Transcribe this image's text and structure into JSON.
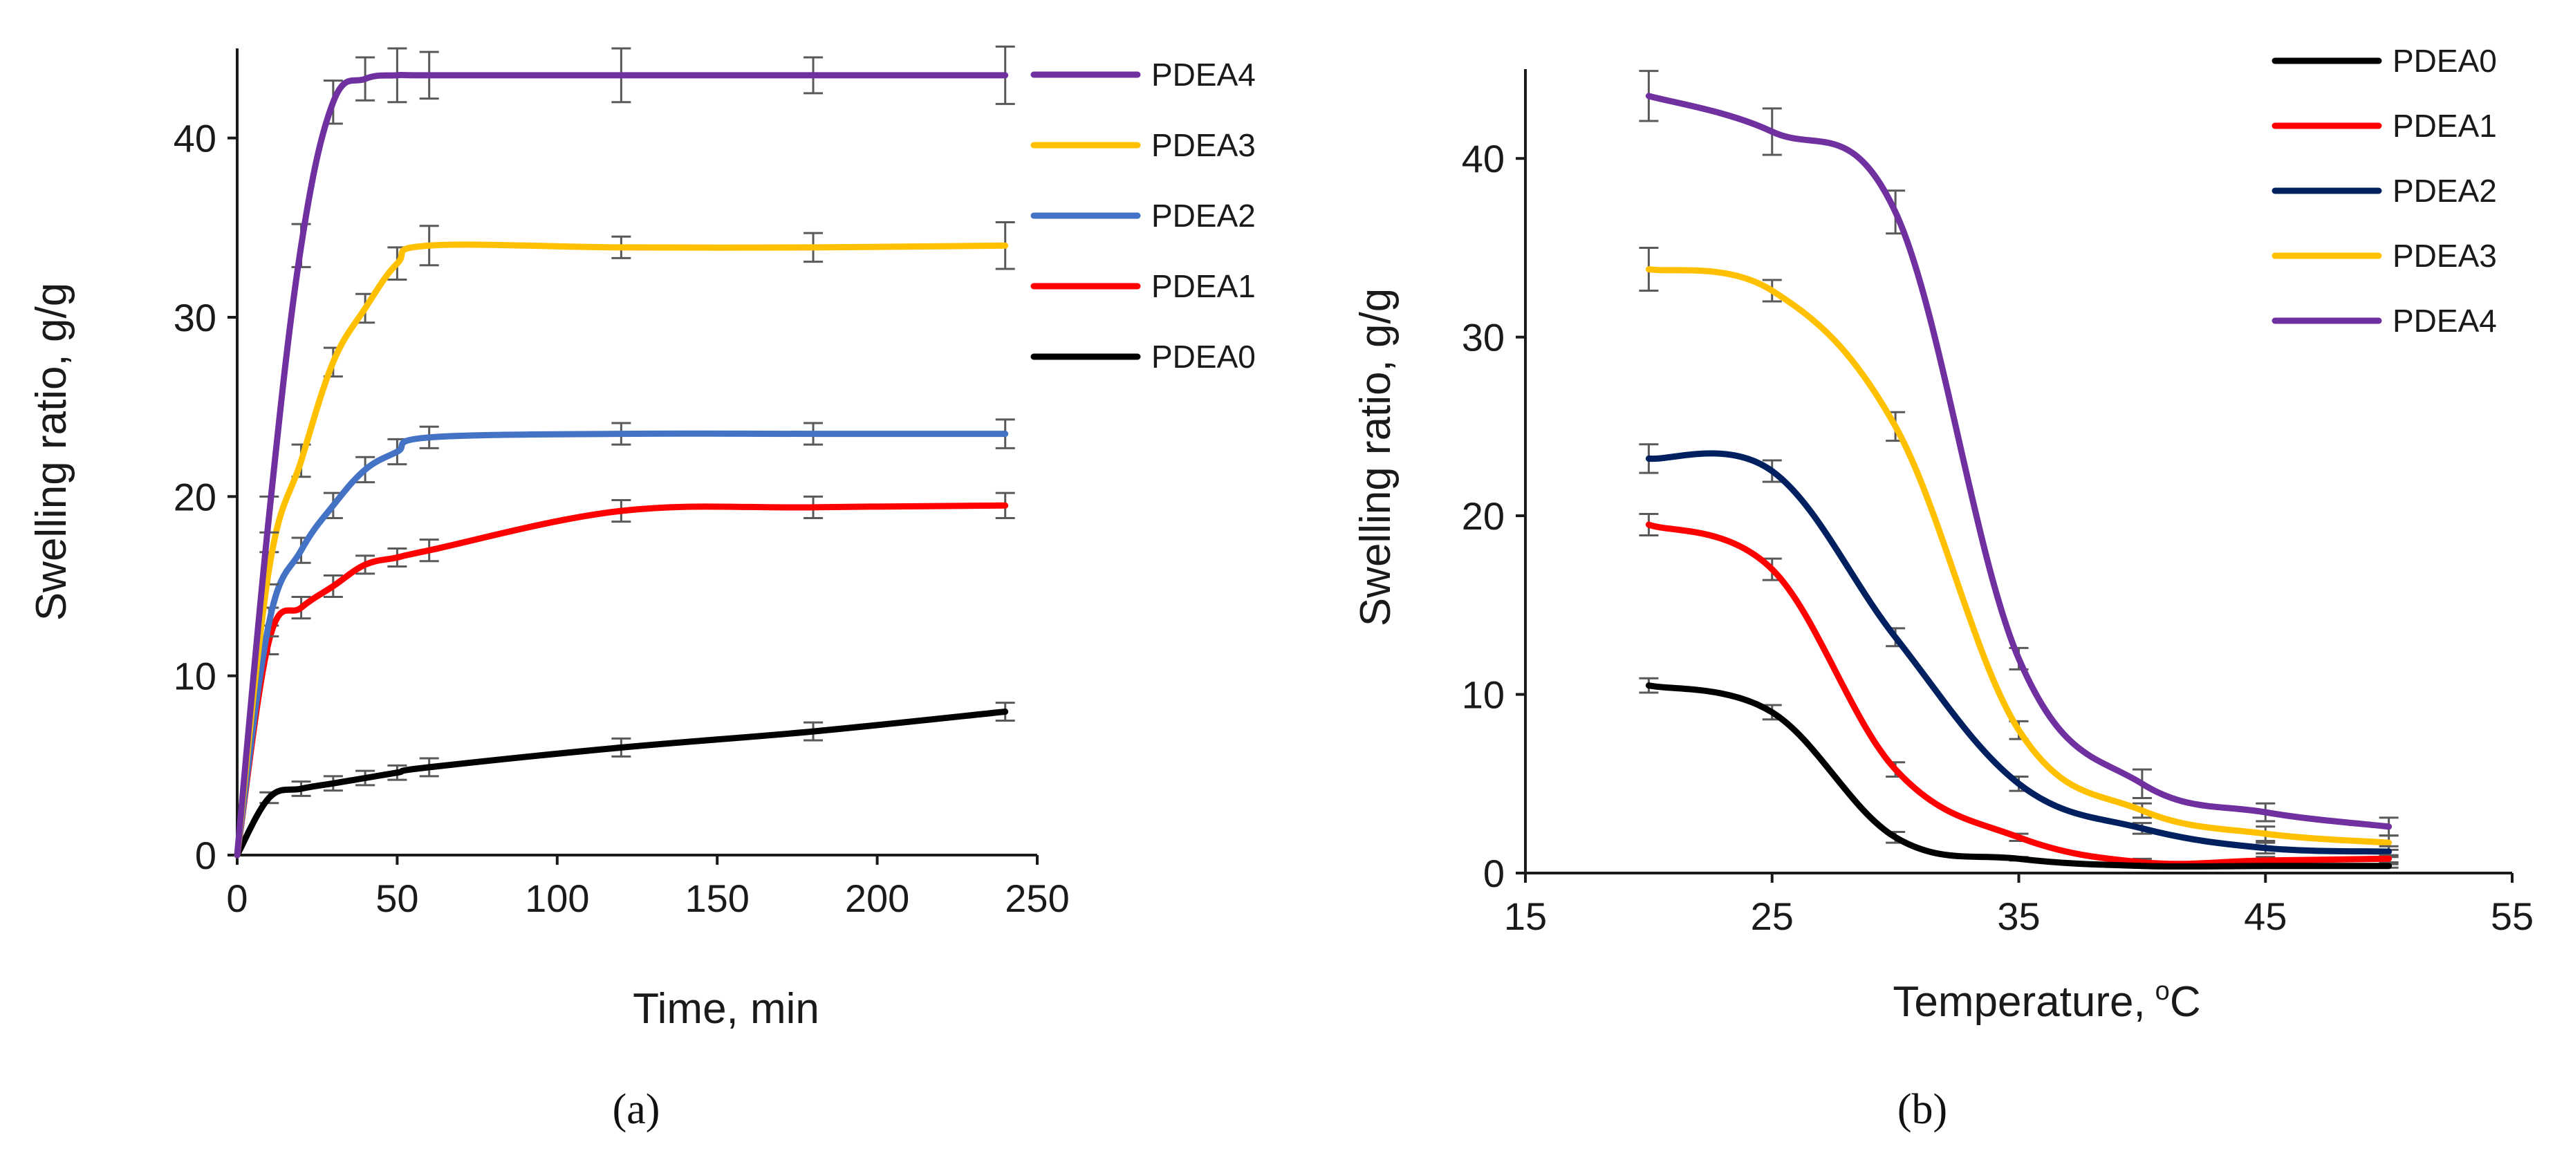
{
  "chart_data": [
    {
      "type": "line",
      "panel_label": "(a)",
      "title": "",
      "xlabel": "Time, min",
      "ylabel": "Swelling ratio, g/g",
      "xlim": [
        0,
        250
      ],
      "ylim": [
        0,
        45
      ],
      "xticks": [
        0,
        50,
        100,
        150,
        200,
        250
      ],
      "yticks": [
        0,
        10,
        20,
        30,
        40
      ],
      "xtick_labels": [
        "0",
        "50",
        "100",
        "150",
        "200",
        "250"
      ],
      "ytick_labels": [
        "0",
        "10",
        "20",
        "30",
        "40"
      ],
      "grid": false,
      "legend_position": "right",
      "legend_order": [
        "PDEA4",
        "PDEA3",
        "PDEA2",
        "PDEA1",
        "PDEA0"
      ],
      "series": [
        {
          "name": "PDEA4",
          "color": "#7030A0",
          "x": [
            0,
            10,
            20,
            30,
            40,
            50,
            60,
            120,
            180,
            240
          ],
          "y": [
            0,
            19,
            34,
            42,
            43.3,
            43.5,
            43.5,
            43.5,
            43.5,
            43.5
          ],
          "err": [
            0,
            1.0,
            1.2,
            1.2,
            1.2,
            1.5,
            1.3,
            1.5,
            1.0,
            1.6
          ]
        },
        {
          "name": "PDEA3",
          "color": "#FFC000",
          "x": [
            0,
            10,
            20,
            30,
            40,
            50,
            60,
            120,
            180,
            240
          ],
          "y": [
            0,
            16,
            22,
            27.5,
            30.5,
            33,
            34,
            33.9,
            33.9,
            34
          ],
          "err": [
            0,
            0.9,
            0.9,
            0.8,
            0.8,
            0.9,
            1.1,
            0.6,
            0.8,
            1.3
          ]
        },
        {
          "name": "PDEA2",
          "color": "#4472C4",
          "x": [
            0,
            10,
            20,
            30,
            40,
            50,
            60,
            120,
            180,
            240
          ],
          "y": [
            0,
            13,
            17,
            19.5,
            21.5,
            22.5,
            23.3,
            23.5,
            23.5,
            23.5
          ],
          "err": [
            0,
            0.8,
            0.7,
            0.7,
            0.7,
            0.7,
            0.6,
            0.6,
            0.6,
            0.8
          ]
        },
        {
          "name": "PDEA1",
          "color": "#FF0000",
          "x": [
            0,
            10,
            20,
            30,
            40,
            50,
            60,
            120,
            180,
            240
          ],
          "y": [
            0,
            12,
            13.8,
            15,
            16.2,
            16.6,
            17,
            19.2,
            19.4,
            19.5
          ],
          "err": [
            0,
            0.8,
            0.6,
            0.6,
            0.5,
            0.5,
            0.6,
            0.6,
            0.6,
            0.7
          ]
        },
        {
          "name": "PDEA0",
          "color": "#000000",
          "x": [
            0,
            10,
            20,
            30,
            40,
            50,
            60,
            120,
            180,
            240
          ],
          "y": [
            0,
            3.2,
            3.7,
            4.0,
            4.3,
            4.6,
            4.9,
            6.0,
            6.9,
            8.0
          ],
          "err": [
            0,
            0.3,
            0.4,
            0.4,
            0.4,
            0.4,
            0.5,
            0.5,
            0.5,
            0.5
          ]
        }
      ]
    },
    {
      "type": "line",
      "panel_label": "(b)",
      "title": "",
      "xlabel": "Temperature,",
      "xlabel_unit_sup": "o",
      "xlabel_unit": "C",
      "ylabel": "Swelling ratio, g/g",
      "xlim": [
        15,
        55
      ],
      "ylim": [
        0,
        45
      ],
      "xticks": [
        15,
        25,
        35,
        45,
        55
      ],
      "yticks": [
        0,
        10,
        20,
        30,
        40
      ],
      "xtick_labels": [
        "15",
        "25",
        "35",
        "45",
        "55"
      ],
      "ytick_labels": [
        "0",
        "10",
        "20",
        "30",
        "40"
      ],
      "grid": false,
      "legend_position": "top-right",
      "legend_order": [
        "PDEA0",
        "PDEA1",
        "PDEA2",
        "PDEA3",
        "PDEA4"
      ],
      "series": [
        {
          "name": "PDEA0",
          "color": "#000000",
          "x": [
            20,
            25,
            30,
            35,
            40,
            45,
            50
          ],
          "y": [
            10.5,
            9.0,
            2.0,
            0.8,
            0.4,
            0.4,
            0.4
          ],
          "err": [
            0.4,
            0.4,
            0.3,
            0.1,
            0.1,
            0.1,
            0.1
          ]
        },
        {
          "name": "PDEA1",
          "color": "#FF0000",
          "x": [
            20,
            25,
            30,
            35,
            40,
            45,
            50
          ],
          "y": [
            19.5,
            17.0,
            5.8,
            2.0,
            0.6,
            0.7,
            0.8
          ],
          "err": [
            0.6,
            0.6,
            0.4,
            0.2,
            0.2,
            0.2,
            0.2
          ]
        },
        {
          "name": "PDEA2",
          "color": "#002060",
          "x": [
            20,
            25,
            30,
            35,
            40,
            45,
            50
          ],
          "y": [
            23.2,
            22.5,
            13.2,
            5.0,
            2.5,
            1.4,
            1.2
          ],
          "err": [
            0.8,
            0.6,
            0.5,
            0.4,
            0.3,
            0.3,
            0.3
          ]
        },
        {
          "name": "PDEA3",
          "color": "#FFC000",
          "x": [
            20,
            25,
            30,
            35,
            40,
            45,
            50
          ],
          "y": [
            33.8,
            32.6,
            25.0,
            8.0,
            3.5,
            2.2,
            1.7
          ],
          "err": [
            1.2,
            0.6,
            0.8,
            0.5,
            0.4,
            0.4,
            0.4
          ]
        },
        {
          "name": "PDEA4",
          "color": "#7030A0",
          "x": [
            20,
            25,
            30,
            35,
            40,
            45,
            50
          ],
          "y": [
            43.5,
            41.5,
            37.0,
            12.0,
            5.0,
            3.4,
            2.6
          ],
          "err": [
            1.4,
            1.3,
            1.2,
            0.6,
            0.8,
            0.5,
            0.5
          ]
        }
      ]
    }
  ]
}
